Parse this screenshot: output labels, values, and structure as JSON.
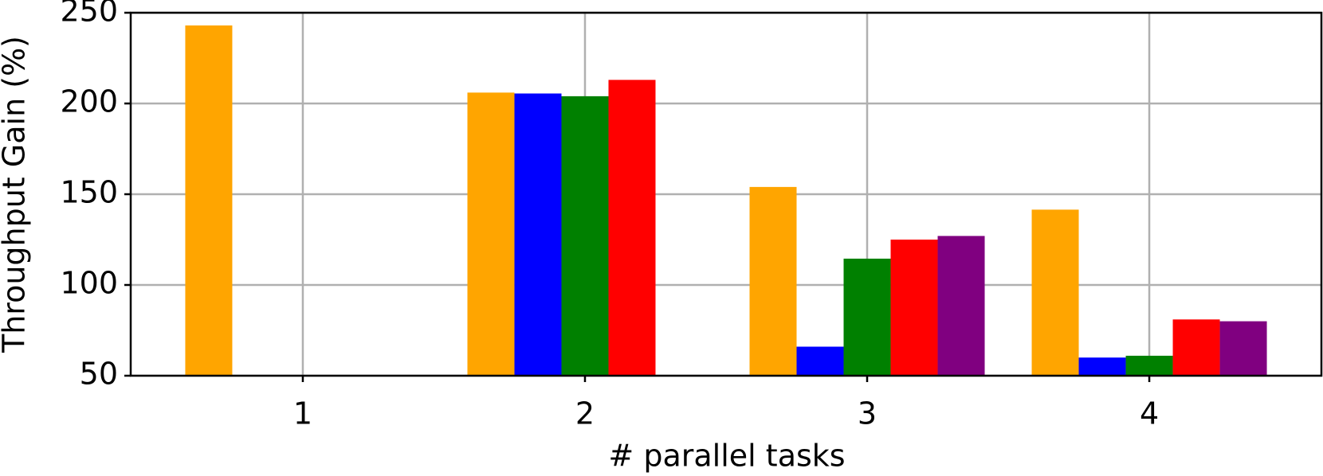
{
  "chart_data": {
    "type": "bar",
    "x": [
      1,
      2,
      3,
      4
    ],
    "xlabel": "# parallel tasks",
    "ylabel": "Throughput Gain (%)",
    "series": [
      {
        "color": "#ffa500",
        "values": [
          243,
          206,
          154,
          141.5
        ]
      },
      {
        "color": "#0000ff",
        "values": [
          null,
          205.5,
          66,
          60
        ]
      },
      {
        "color": "#008000",
        "values": [
          null,
          204,
          114.5,
          61
        ]
      },
      {
        "color": "#ff0000",
        "values": [
          null,
          213,
          125,
          81
        ]
      },
      {
        "color": "#800080",
        "values": [
          null,
          null,
          127,
          80
        ]
      }
    ],
    "xlim": [
      0.39,
      4.61
    ],
    "xticks": [
      1,
      2,
      3,
      4
    ],
    "ylim": [
      50,
      250
    ],
    "yticks": [
      50,
      100,
      150,
      200,
      250
    ],
    "grid": true
  }
}
